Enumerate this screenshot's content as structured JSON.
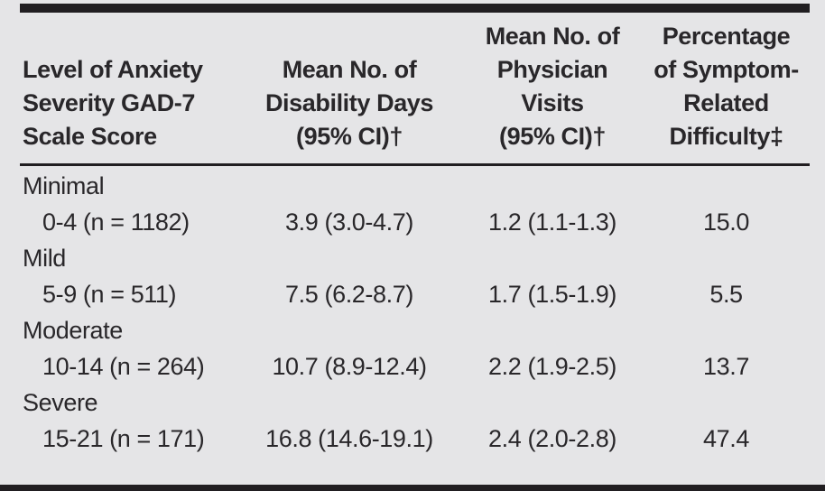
{
  "table": {
    "colors": {
      "background": "#e5e5e7",
      "ink": "#29272a",
      "rule": "#211e21"
    },
    "columns": [
      {
        "header_lines": [
          "Level of Anxiety",
          "Severity GAD-7",
          "Scale Score"
        ]
      },
      {
        "header_lines": [
          "Mean No. of",
          "Disability Days",
          "(95% CI)†"
        ]
      },
      {
        "header_lines": [
          "Mean No. of",
          "Physician",
          "Visits",
          "(95% CI)†"
        ]
      },
      {
        "header_lines": [
          "Percentage",
          "of Symptom-",
          "Related",
          "Difficulty‡"
        ]
      }
    ],
    "groups": [
      {
        "severity": "Minimal",
        "score_range": "0-4 (n = 1182)",
        "disability_days": "3.9 (3.0-4.7)",
        "physician_visits": "1.2 (1.1-1.3)",
        "pct_difficulty": "15.0"
      },
      {
        "severity": "Mild",
        "score_range": "5-9 (n = 511)",
        "disability_days": "7.5 (6.2-8.7)",
        "physician_visits": "1.7 (1.5-1.9)",
        "pct_difficulty": "5.5"
      },
      {
        "severity": "Moderate",
        "score_range": "10-14 (n = 264)",
        "disability_days": "10.7 (8.9-12.4)",
        "physician_visits": "2.2 (1.9-2.5)",
        "pct_difficulty": "13.7"
      },
      {
        "severity": "Severe",
        "score_range": "15-21 (n = 171)",
        "disability_days": "16.8 (14.6-19.1)",
        "physician_visits": "2.4 (2.0-2.8)",
        "pct_difficulty": "47.4"
      }
    ]
  },
  "chart_data": {
    "type": "table",
    "title": "",
    "columns": [
      "Level of Anxiety Severity GAD-7 Scale Score",
      "Mean No. of Disability Days (95% CI)†",
      "Mean No. of Physician Visits (95% CI)†",
      "Percentage of Symptom-Related Difficulty‡"
    ],
    "rows": [
      [
        "Minimal 0-4 (n = 1182)",
        "3.9 (3.0-4.7)",
        "1.2 (1.1-1.3)",
        "15.0"
      ],
      [
        "Mild 5-9 (n = 511)",
        "7.5 (6.2-8.7)",
        "1.7 (1.5-1.9)",
        "5.5"
      ],
      [
        "Moderate 10-14 (n = 264)",
        "10.7 (8.9-12.4)",
        "2.2 (1.9-2.5)",
        "13.7"
      ],
      [
        "Severe 15-21 (n = 171)",
        "16.8 (14.6-19.1)",
        "2.4 (2.0-2.8)",
        "47.4"
      ]
    ]
  }
}
